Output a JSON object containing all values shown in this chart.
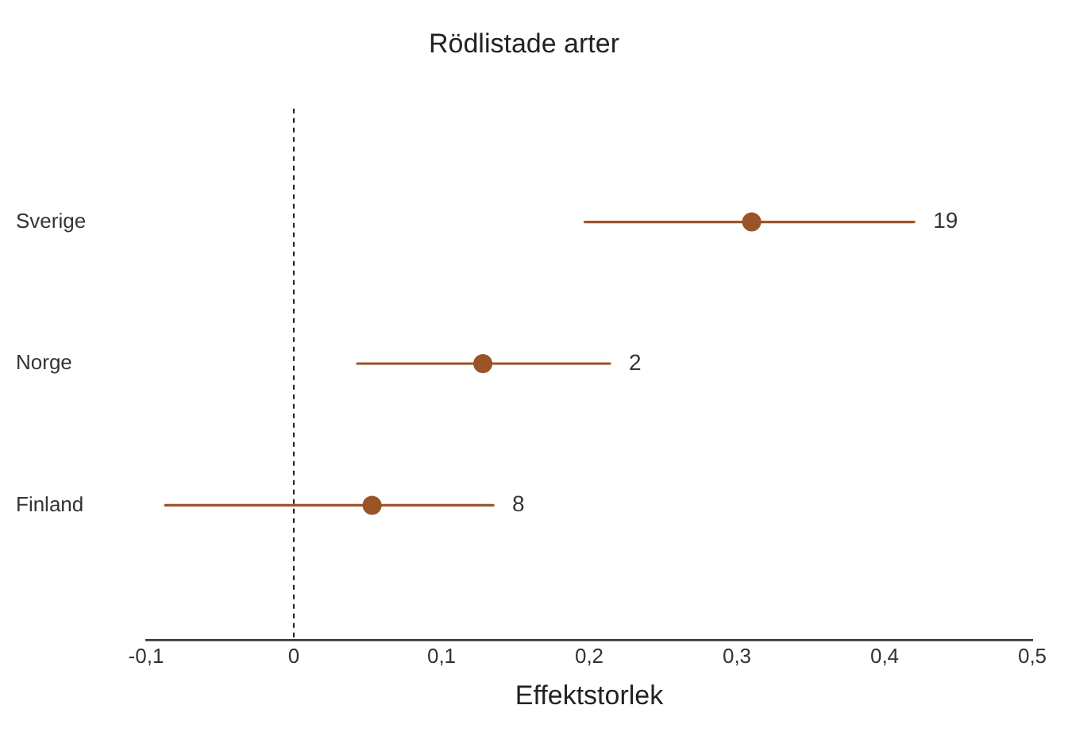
{
  "chart_data": {
    "type": "scatter",
    "title": "Rödlistade arter",
    "xlabel": "Effektstorlek",
    "orientation": "horizontal",
    "categories": [
      "Sverige",
      "Norge",
      "Finland"
    ],
    "values": [
      0.31,
      0.128,
      0.053
    ],
    "errors": [
      [
        0.197,
        0.42
      ],
      [
        0.043,
        0.214
      ],
      [
        -0.087,
        0.135
      ]
    ],
    "color": "#9a5428",
    "marker": "circle",
    "xlim": [
      -0.1,
      0.5
    ],
    "xticks": [
      {
        "value": -0.1,
        "label": "-0,1"
      },
      0,
      {
        "value": 0.1,
        "label": "0,1"
      },
      {
        "value": 0.2,
        "label": "0,2"
      },
      {
        "value": 0.3,
        "label": "0,3"
      },
      {
        "value": 0.4,
        "label": "0,4"
      },
      {
        "value": 0.5,
        "label": "0,5"
      }
    ],
    "ref_lines": [
      {
        "axis": "x",
        "value": 0,
        "color": "#222222",
        "line_style": "dashed"
      }
    ],
    "annotations": [
      "19",
      "2",
      "8"
    ],
    "grid": false,
    "legend": false
  }
}
